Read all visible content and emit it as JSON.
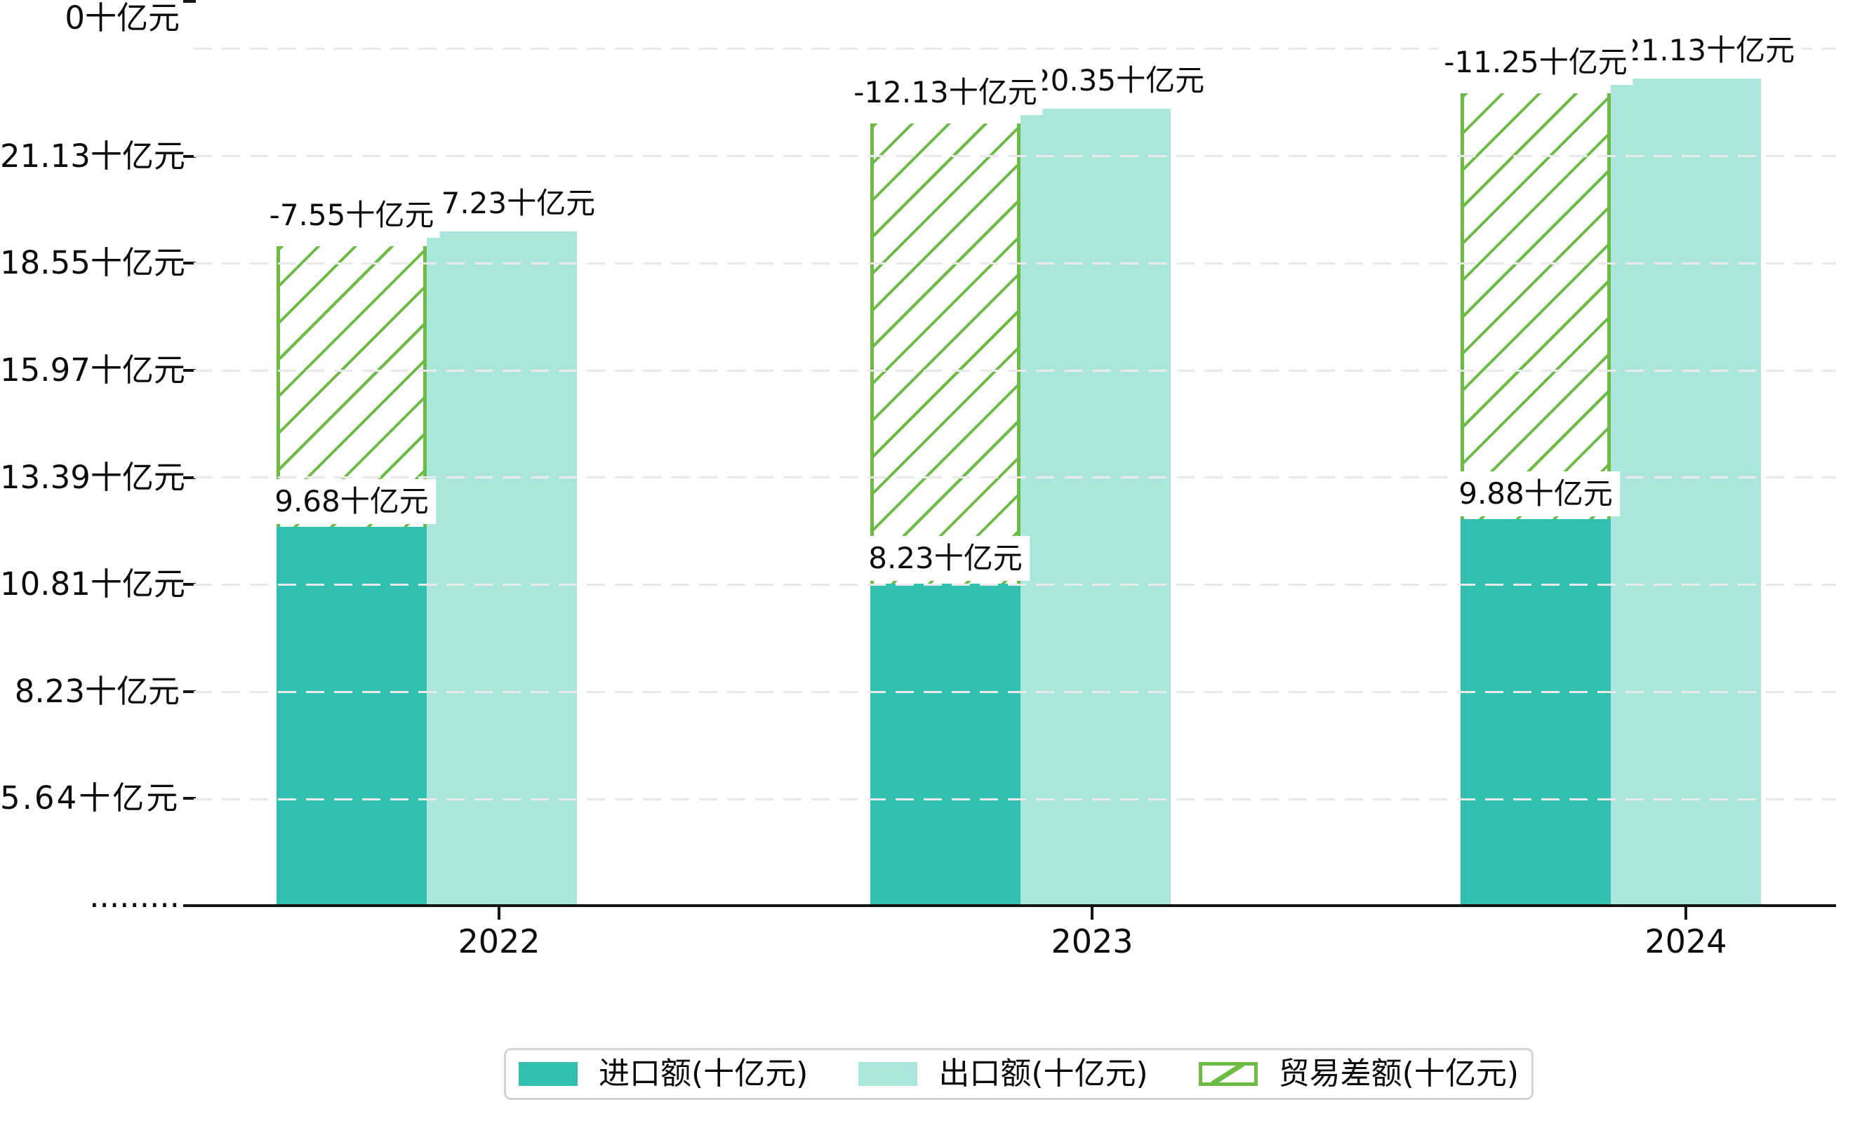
{
  "page": {
    "background": "#ffffff"
  },
  "colors": {
    "import": "#31BFB0",
    "export": "#AAE6DC",
    "balance_hatch": "#6BBB45",
    "axis": "#141414",
    "gridline": "#e9e9e9",
    "label_background": "#ffffff",
    "legend_border": "#d4d4d4",
    "text": "#0c0c0c"
  },
  "chart_data": {
    "type": "bar",
    "title": "",
    "unit": "十亿元",
    "categories": [
      "2022",
      "2023",
      "2024"
    ],
    "series": [
      {
        "name": "进口额(十亿元)",
        "style": "solid",
        "color": "#31BFB0",
        "values": [
          9.68,
          8.23,
          9.88
        ],
        "data_labels": [
          "9.68十亿元",
          "8.23十亿元",
          "9.88十亿元"
        ]
      },
      {
        "name": "出口额(十亿元)",
        "style": "solid",
        "color": "#AAE6DC",
        "values": [
          17.23,
          20.35,
          21.13
        ],
        "data_labels": [
          "17.23十亿元",
          "20.35十亿元",
          "21.13十亿元"
        ]
      },
      {
        "name": "贸易差额(十亿元)",
        "style": "hatched",
        "color": "#6BBB45",
        "values": [
          -7.55,
          -12.13,
          -11.25
        ],
        "data_labels": [
          "-7.55十亿元",
          "-12.13十亿元",
          "-11.25十亿元"
        ]
      }
    ],
    "y_ticks": [
      "21.13十亿元",
      "18.55十亿元",
      "15.97十亿元",
      "13.39十亿元",
      "10.81十亿元",
      "8.23十亿元",
      "5.64十亿元",
      "·········",
      "0十亿元"
    ],
    "ylim": [
      0,
      21.13
    ],
    "grid": true,
    "legend_position": "bottom"
  },
  "legend": {
    "items": [
      {
        "label": "进口额(十亿元)",
        "swatch": "import-solid"
      },
      {
        "label": "出口额(十亿元)",
        "swatch": "export-solid"
      },
      {
        "label": "贸易差额(十亿元)",
        "swatch": "green-hatch"
      }
    ]
  }
}
